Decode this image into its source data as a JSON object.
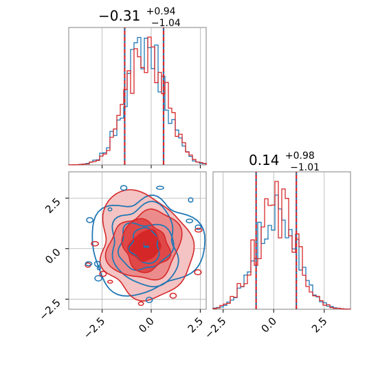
{
  "chart_data": {
    "type": "corner",
    "colors": {
      "series_a": "#1f77b4",
      "series_b": "#d62728"
    },
    "parameters": [
      {
        "title": {
          "median": "−0.31",
          "plus": "+0.94",
          "minus": "−1.04"
        },
        "quantiles": [
          -1.35,
          -0.31,
          0.63
        ],
        "xlim": [
          -4.2,
          2.8
        ]
      },
      {
        "title": {
          "median": "0.14",
          "plus": "+0.98",
          "minus": "−1.01"
        },
        "quantiles": [
          -0.87,
          0.14,
          1.12
        ],
        "xlim": [
          -3.0,
          3.8
        ]
      }
    ],
    "ticks_param1": {
      "values": [
        -2.5,
        0.0,
        2.5
      ],
      "labels": [
        "−2.5",
        "0.0",
        "2.5"
      ]
    },
    "ticks_param2": {
      "values": [
        -2.5,
        0.0,
        2.5
      ],
      "labels": [
        "−2.5",
        "0.0",
        "2.5"
      ]
    },
    "hist_bins": 40,
    "truth_markers": [
      {
        "series": "series_a",
        "x": -0.25,
        "y": 0.18
      },
      {
        "series": "series_b",
        "x": -0.22,
        "y": 0.28
      }
    ],
    "contour_levels": [
      0.25,
      0.5,
      0.75,
      0.95
    ],
    "grid": true
  }
}
